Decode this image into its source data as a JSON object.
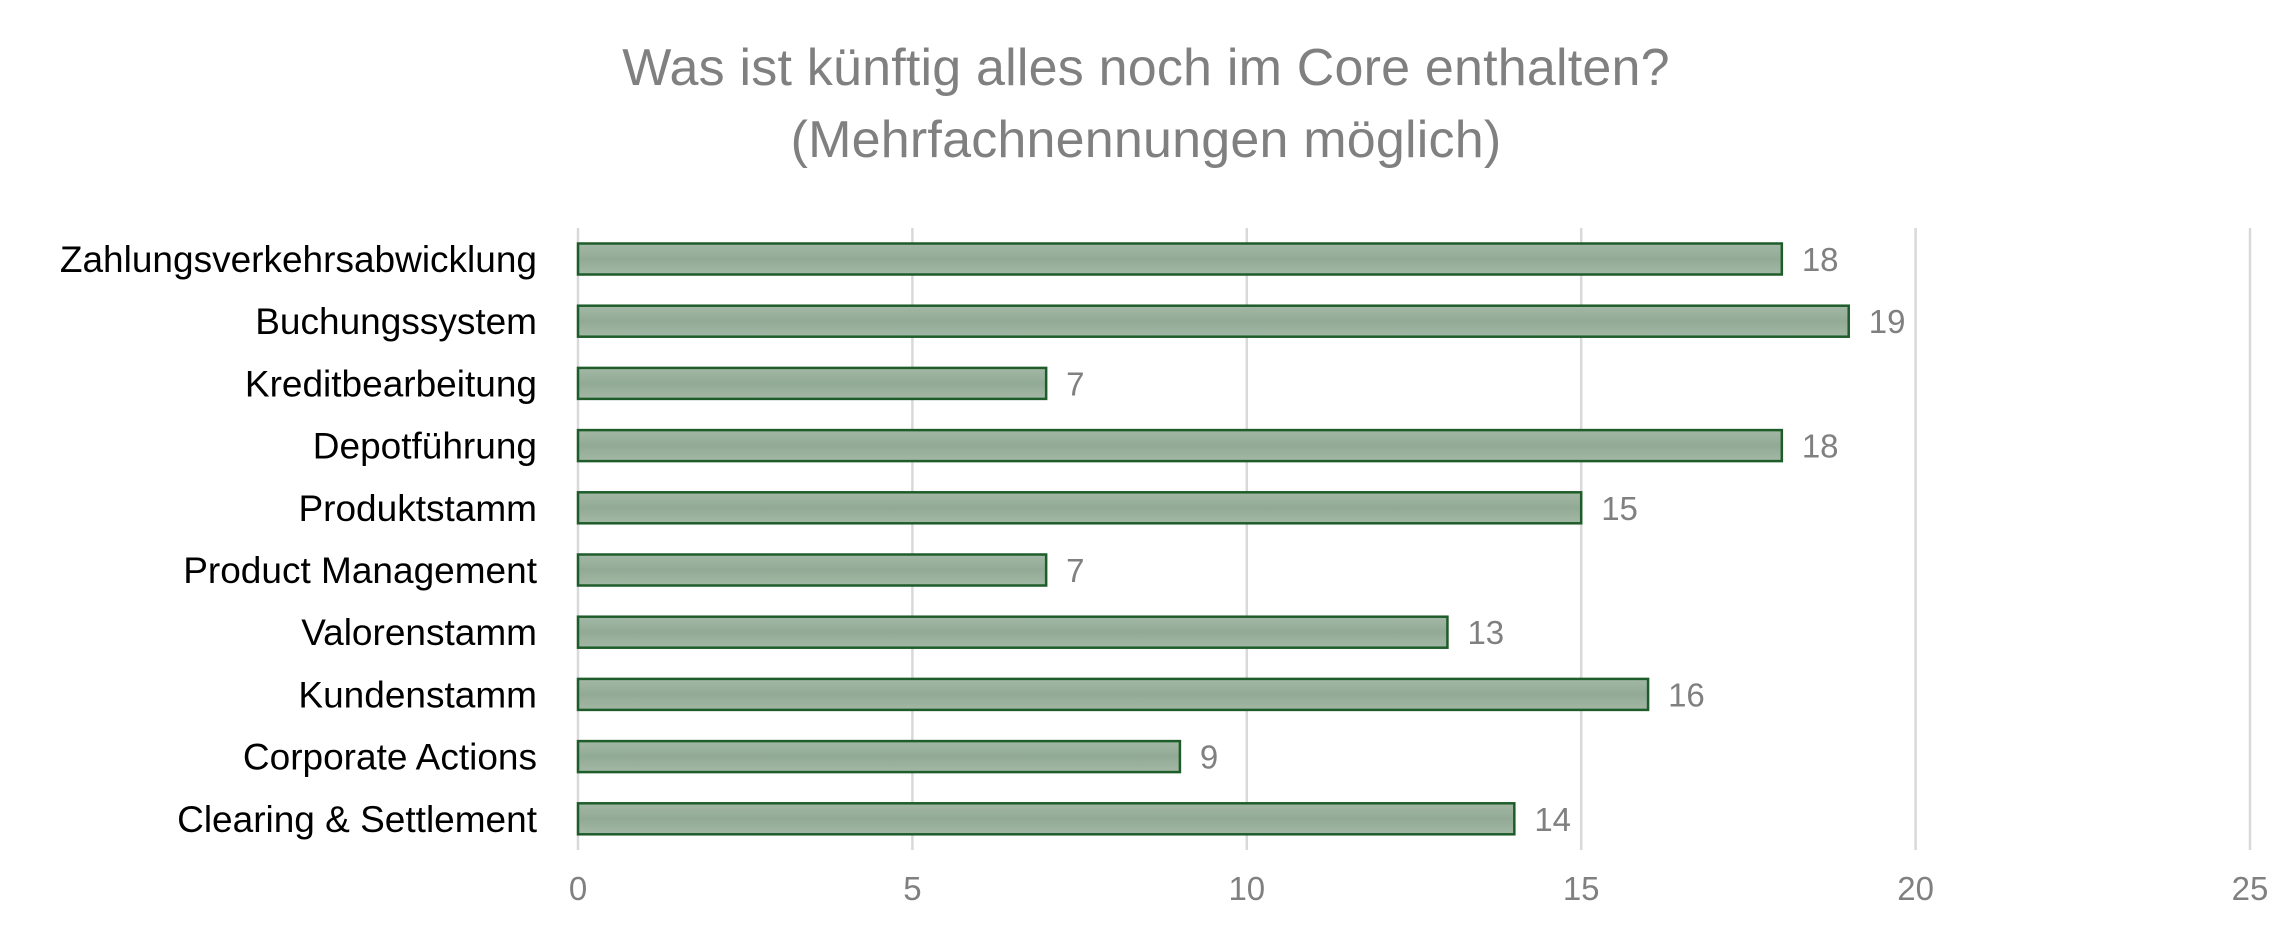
{
  "colors": {
    "bar_fill_top": "#a3b8a6",
    "bar_fill_mid": "#91aa95",
    "bar_fill_bottom": "#a3b8a6",
    "bar_stroke": "#1e5c2a",
    "gridline": "#d9d9d9",
    "axis_line": "#d9d9d9",
    "text_secondary": "#808080",
    "text_primary": "#000000"
  },
  "chart_data": {
    "type": "bar",
    "orientation": "horizontal",
    "title": "Was ist künftig alles noch im Core enthalten?",
    "subtitle": "(Mehrfachnennungen möglich)",
    "categories": [
      "Zahlungsverkehrsabwicklung",
      "Buchungssystem",
      "Kreditbearbeitung",
      "Depotführung",
      "Produktstamm",
      "Product Management",
      "Valorenstamm",
      "Kundenstamm",
      "Corporate Actions",
      "Clearing & Settlement"
    ],
    "values": [
      18,
      19,
      7,
      18,
      15,
      7,
      13,
      16,
      9,
      14
    ],
    "xlim": [
      0,
      25
    ],
    "xticks": [
      0,
      5,
      10,
      15,
      20,
      25
    ],
    "xlabel": "",
    "ylabel": "",
    "grid": true,
    "legend": "none",
    "data_labels": true
  }
}
